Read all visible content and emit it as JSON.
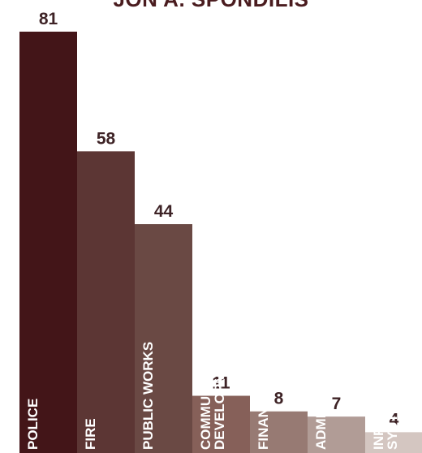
{
  "chart_data": {
    "type": "bar",
    "title": "JON A. SPONDILIS",
    "categories": [
      [
        "POLICE"
      ],
      [
        "FIRE"
      ],
      [
        "PUBLIC WORKS"
      ],
      [
        "COMMUNITY",
        "DEVELOPMENT"
      ],
      [
        "FINANCE"
      ],
      [
        "ADMIN & HR"
      ],
      [
        "INFORMATION",
        "SYSTEMS"
      ]
    ],
    "values": [
      81,
      58,
      44,
      11,
      8,
      7,
      4
    ],
    "colors": [
      "#431518",
      "#5c3634",
      "#6a4944",
      "#866059",
      "#977a73",
      "#b19c96",
      "#d4c6c1"
    ],
    "xlabel": "",
    "ylabel": "",
    "ylim": [
      0,
      81
    ],
    "grid": false,
    "legend": "none"
  }
}
